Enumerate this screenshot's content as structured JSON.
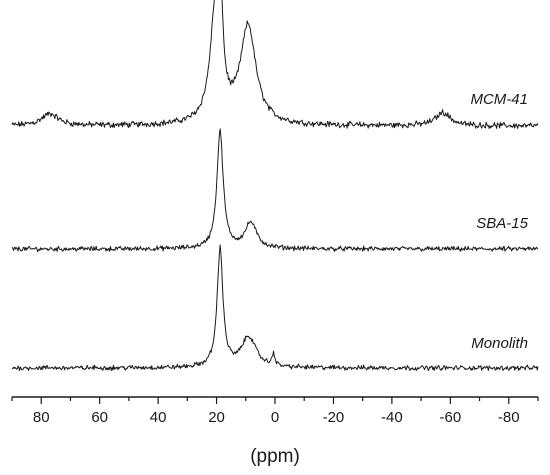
{
  "chart_data": {
    "type": "line",
    "title": "",
    "xlabel": "(ppm)",
    "ylabel": "",
    "xlim": [
      90,
      -90
    ],
    "x_reversed": true,
    "x_ticks": [
      80,
      60,
      40,
      20,
      0,
      -20,
      -40,
      -60,
      -80
    ],
    "x_tick_labels": [
      "80",
      "60",
      "40",
      "20",
      "0",
      "-20",
      "-40",
      "-60",
      "-80"
    ],
    "grid": false,
    "legend": "none",
    "y_axis_visible": false,
    "series": [
      {
        "name": "MCM-41",
        "baseline": 0,
        "peaks": [
          {
            "center": 20.3,
            "width": 2.2,
            "height": 0.78
          },
          {
            "center": 18.6,
            "width": 0.8,
            "height": 0.55
          },
          {
            "center": 9.2,
            "width": 3.2,
            "height": 0.66
          },
          {
            "center": 77,
            "width": 3.5,
            "height": 0.08
          },
          {
            "center": -57.5,
            "width": 3.0,
            "height": 0.09
          }
        ]
      },
      {
        "name": "SBA-15",
        "baseline": 0,
        "peaks": [
          {
            "center": 18.8,
            "width": 1.3,
            "height": 1.0
          },
          {
            "center": 8.3,
            "width": 2.4,
            "height": 0.22
          }
        ]
      },
      {
        "name": "Monolith",
        "baseline": 0,
        "peaks": [
          {
            "center": 18.8,
            "width": 1.2,
            "height": 1.0
          },
          {
            "center": 9.0,
            "width": 3.0,
            "height": 0.26
          },
          {
            "center": 0.5,
            "width": 0.45,
            "height": 0.12
          }
        ]
      }
    ]
  }
}
